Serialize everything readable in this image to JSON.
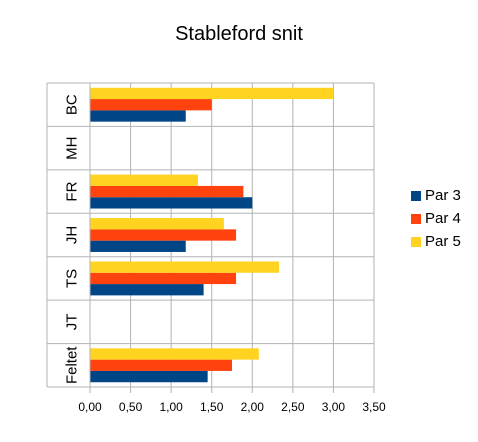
{
  "chart_data": {
    "type": "bar",
    "orientation": "horizontal",
    "title": "Stableford snit",
    "xlabel": "",
    "ylabel": "",
    "categories": [
      "BC",
      "MH",
      "FR",
      "JH",
      "TS",
      "JT",
      "Feltet"
    ],
    "series": [
      {
        "name": "Par 3",
        "color": "#004586",
        "values": [
          1.18,
          null,
          2.0,
          1.18,
          1.4,
          null,
          1.45
        ]
      },
      {
        "name": "Par 4",
        "color": "#ff420e",
        "values": [
          1.5,
          null,
          1.89,
          1.8,
          1.8,
          null,
          1.75
        ]
      },
      {
        "name": "Par 5",
        "color": "#ffd320",
        "values": [
          3.0,
          null,
          1.33,
          1.65,
          2.33,
          null,
          2.08
        ]
      }
    ],
    "xlim": [
      0,
      3.5
    ],
    "xticks": [
      0,
      0.5,
      1.0,
      1.5,
      2.0,
      2.5,
      3.0,
      3.5
    ],
    "xtick_labels": [
      "0,00",
      "0,50",
      "1,00",
      "1,50",
      "2,00",
      "2,50",
      "3,00",
      "3,50"
    ],
    "grid": true,
    "legend_position": "right"
  }
}
